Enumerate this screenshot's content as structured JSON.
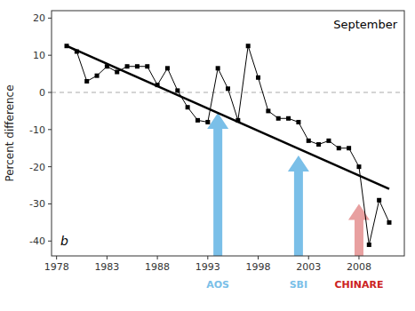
{
  "chart_data": {
    "type": "line",
    "x": [
      1979,
      1980,
      1981,
      1982,
      1983,
      1984,
      1985,
      1986,
      1987,
      1988,
      1989,
      1990,
      1991,
      1992,
      1993,
      1994,
      1995,
      1996,
      1997,
      1998,
      1999,
      2000,
      2001,
      2002,
      2003,
      2004,
      2005,
      2006,
      2007,
      2008,
      2009,
      2010,
      2011
    ],
    "series": [
      {
        "color": "#000000",
        "marker": "square",
        "values": [
          12.5,
          11.0,
          3.0,
          4.5,
          7.0,
          5.5,
          7.0,
          7.0,
          7.0,
          2.0,
          6.5,
          0.5,
          -4.0,
          -7.5,
          -8.0,
          6.5,
          1.0,
          -7.5,
          12.5,
          4.0,
          -5.0,
          -7.0,
          -7.0,
          -8.0,
          -13.0,
          -14.0,
          -13.0,
          -15.0,
          -15.0,
          -20.0,
          -41.0,
          -29.0,
          -35.0
        ]
      }
    ],
    "trend_line": {
      "x": [
        1979,
        2011
      ],
      "values": [
        12.5,
        -26.0
      ],
      "color": "#000000"
    },
    "reference_line": {
      "value": 0,
      "color": "#aaaaaa",
      "line_style": "dashed"
    },
    "arrows": [
      {
        "text": "AOS",
        "x": 1994,
        "y_start": -44.0,
        "y_end": -5.5,
        "color": "#7abfe8",
        "text_color": "#7abfe8"
      },
      {
        "text": "SBI",
        "x": 2002,
        "y_start": -44.0,
        "y_end": -17.0,
        "color": "#7abfe8",
        "text_color": "#7abfe8"
      },
      {
        "text": "CHINARE",
        "x": 2008,
        "y_start": -44.0,
        "y_end": -30.0,
        "color": "#e8a0a0",
        "text_color": "#cc2222"
      }
    ],
    "month_label": "September",
    "panel_label": "b",
    "ylabel": "Percent difference",
    "xlim": [
      1977.5,
      2012.5
    ],
    "ylim": [
      -44,
      22
    ],
    "xticks": [
      1978,
      1983,
      1988,
      1993,
      1998,
      2003,
      2008
    ],
    "yticks": [
      -40,
      -30,
      -20,
      -10,
      0,
      10,
      20
    ],
    "grid": false
  }
}
